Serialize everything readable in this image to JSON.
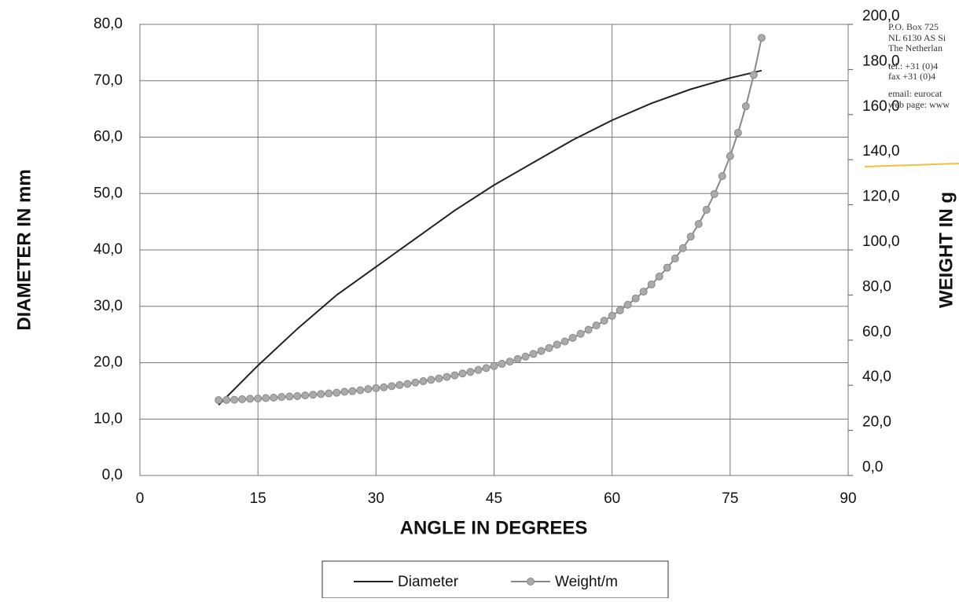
{
  "chart_data": {
    "type": "line",
    "xlabel": "ANGLE IN DEGREES",
    "ylabel": "DIAMETER IN mm",
    "y2label": "WEIGHT IN g",
    "xlim": [
      0,
      90
    ],
    "xticks": [
      0,
      15,
      30,
      45,
      60,
      75,
      90
    ],
    "ylim": [
      0,
      80
    ],
    "yticks": [
      {
        "value": 0,
        "label": "0,0"
      },
      {
        "value": 10,
        "label": "10,0"
      },
      {
        "value": 20,
        "label": "20,0"
      },
      {
        "value": 30,
        "label": "30,0"
      },
      {
        "value": 40,
        "label": "40,0"
      },
      {
        "value": 50,
        "label": "50,0"
      },
      {
        "value": 60,
        "label": "60,0"
      },
      {
        "value": 70,
        "label": "70,0"
      },
      {
        "value": 80,
        "label": "80,0"
      }
    ],
    "y2lim": [
      0,
      200
    ],
    "y2ticks": [
      {
        "value": 0,
        "label": "0,0"
      },
      {
        "value": 20,
        "label": "20,0"
      },
      {
        "value": 40,
        "label": "40,0"
      },
      {
        "value": 60,
        "label": "60,0"
      },
      {
        "value": 80,
        "label": "80,0"
      },
      {
        "value": 100,
        "label": "100,0"
      },
      {
        "value": 120,
        "label": "120,0"
      },
      {
        "value": 140,
        "label": "140,0"
      },
      {
        "value": 160,
        "label": "160,0"
      },
      {
        "value": 180,
        "label": "180,0"
      },
      {
        "value": 200,
        "label": "200,0"
      }
    ],
    "grid": true,
    "legend": "bottom",
    "series": [
      {
        "name": "Diameter",
        "color": "#222222",
        "x": [
          10,
          15,
          20,
          25,
          30,
          35,
          40,
          45,
          50,
          55,
          60,
          65,
          70,
          75,
          79
        ],
        "values": [
          12.5,
          19.5,
          26,
          32,
          37,
          42,
          47,
          51.5,
          55.5,
          59.5,
          63,
          66,
          68.5,
          70.5,
          71.8
        ]
      },
      {
        "name": "Weight/m",
        "color": "#888888",
        "axis": "y2",
        "x": [
          10,
          11,
          12,
          13,
          14,
          15,
          16,
          17,
          18,
          19,
          20,
          21,
          22,
          23,
          24,
          25,
          26,
          27,
          28,
          29,
          30,
          31,
          32,
          33,
          34,
          35,
          36,
          37,
          38,
          39,
          40,
          41,
          42,
          43,
          44,
          45,
          46,
          47,
          48,
          49,
          50,
          51,
          52,
          53,
          54,
          55,
          56,
          57,
          58,
          59,
          60,
          61,
          62,
          63,
          64,
          65,
          66,
          67,
          68,
          69,
          70,
          71,
          72,
          73,
          74,
          75,
          76,
          77,
          78,
          79
        ],
        "values": [
          33.4,
          33.5,
          33.6,
          33.8,
          34.0,
          34.1,
          34.3,
          34.5,
          34.8,
          35.0,
          35.2,
          35.5,
          35.8,
          36.1,
          36.4,
          36.7,
          37.1,
          37.4,
          37.8,
          38.3,
          38.7,
          39.1,
          39.6,
          40.1,
          40.6,
          41.2,
          41.8,
          42.4,
          43.0,
          43.7,
          44.4,
          45.2,
          45.9,
          46.8,
          47.6,
          48.5,
          49.5,
          50.5,
          51.6,
          52.7,
          53.9,
          55.2,
          56.5,
          58.0,
          59.4,
          61.0,
          62.8,
          64.6,
          66.5,
          68.6,
          70.8,
          73.2,
          75.7,
          78.5,
          81.5,
          84.7,
          88.2,
          92.1,
          96.2,
          100.8,
          105.9,
          111.5,
          117.8,
          124.8,
          132.7,
          141.6,
          151.9,
          163.7,
          177.6,
          194.0
        ]
      }
    ],
    "annotations": [
      "P.O. Box 725",
      "NL 6130 AS Si",
      "The Netherlan",
      "tel.: +31 (0)4",
      "fax +31 (0)4",
      "email: eurocat",
      "web page: www"
    ]
  }
}
